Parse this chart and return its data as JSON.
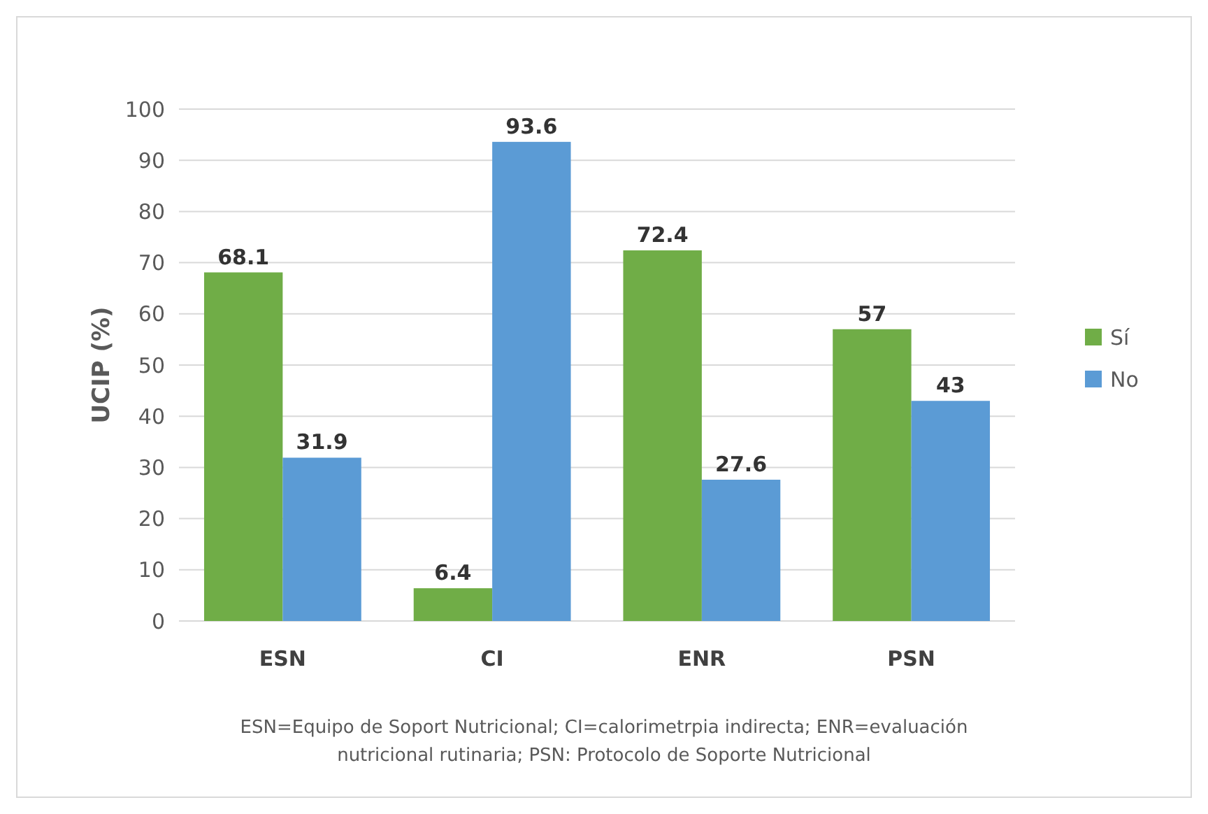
{
  "chart_data": {
    "type": "bar",
    "ylabel": "UCIP (%)",
    "categories": [
      "ESN",
      "CI",
      "ENR",
      "PSN"
    ],
    "series": [
      {
        "name": "Sí",
        "color": "#70ad47",
        "values": [
          68.1,
          6.4,
          72.4,
          57
        ]
      },
      {
        "name": "No",
        "color": "#5b9bd5",
        "values": [
          31.9,
          93.6,
          27.6,
          43
        ]
      }
    ],
    "ylim": [
      0,
      100
    ],
    "yticks": [
      0,
      10,
      20,
      30,
      40,
      50,
      60,
      70,
      80,
      90,
      100
    ],
    "grid": "y",
    "legend": "right",
    "data_labels": true,
    "annotations": [
      "ESN=Equipo de Soport Nutricional; CI=calorimetrpia indirecta; ENR=evaluación nutricional rutinaria; PSN: Protocolo de Soporte Nutricional"
    ]
  }
}
